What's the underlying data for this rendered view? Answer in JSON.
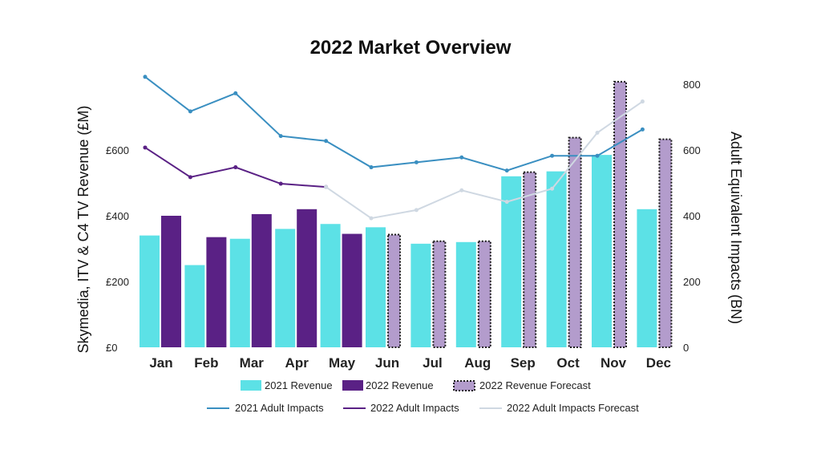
{
  "chart_data": {
    "type": "bar",
    "title": "2022 Market Overview",
    "categories": [
      "Jan",
      "Feb",
      "Mar",
      "Apr",
      "May",
      "Jun",
      "Jul",
      "Aug",
      "Sep",
      "Oct",
      "Nov",
      "Dec"
    ],
    "ylabel": "Skymedia, ITV & C4 TV Revenue (£M)",
    "y2label": "Adult Equivalent Impacts (BN)",
    "ylim": [
      0,
      800
    ],
    "y2lim": [
      0,
      800
    ],
    "yticks": [
      "£0",
      "£200",
      "£400",
      "£600"
    ],
    "y2ticks": [
      "0",
      "200",
      "400",
      "600",
      "800"
    ],
    "grid": false,
    "legend_position": "bottom",
    "bar_series": [
      {
        "name": "2021 Revenue",
        "color": "#5ce1e6",
        "values": [
          340,
          250,
          330,
          360,
          375,
          365,
          315,
          320,
          520,
          535,
          585,
          420
        ]
      },
      {
        "name": "2022 Revenue",
        "color": "#5a2185",
        "values": [
          400,
          335,
          405,
          420,
          345,
          null,
          null,
          null,
          null,
          null,
          null,
          null
        ]
      },
      {
        "name": "2022 Revenue Forecast",
        "color": "#b39ccc",
        "pattern": "dotted-border",
        "values": [
          null,
          null,
          null,
          null,
          null,
          345,
          325,
          325,
          535,
          640,
          810,
          635
        ]
      }
    ],
    "line_series": [
      {
        "name": "2021 Adult Impacts",
        "color": "#3a8fc1",
        "values": [
          820,
          715,
          770,
          640,
          625,
          545,
          560,
          575,
          535,
          580,
          580,
          660
        ]
      },
      {
        "name": "2022 Adult Impacts",
        "color": "#5a2185",
        "values": [
          605,
          515,
          545,
          495,
          485,
          null,
          null,
          null,
          null,
          null,
          null,
          null
        ]
      },
      {
        "name": "2022 Adult Impacts Forecast",
        "color": "#cfd8e2",
        "values": [
          null,
          null,
          null,
          null,
          485,
          390,
          415,
          475,
          440,
          480,
          650,
          745
        ]
      }
    ]
  }
}
